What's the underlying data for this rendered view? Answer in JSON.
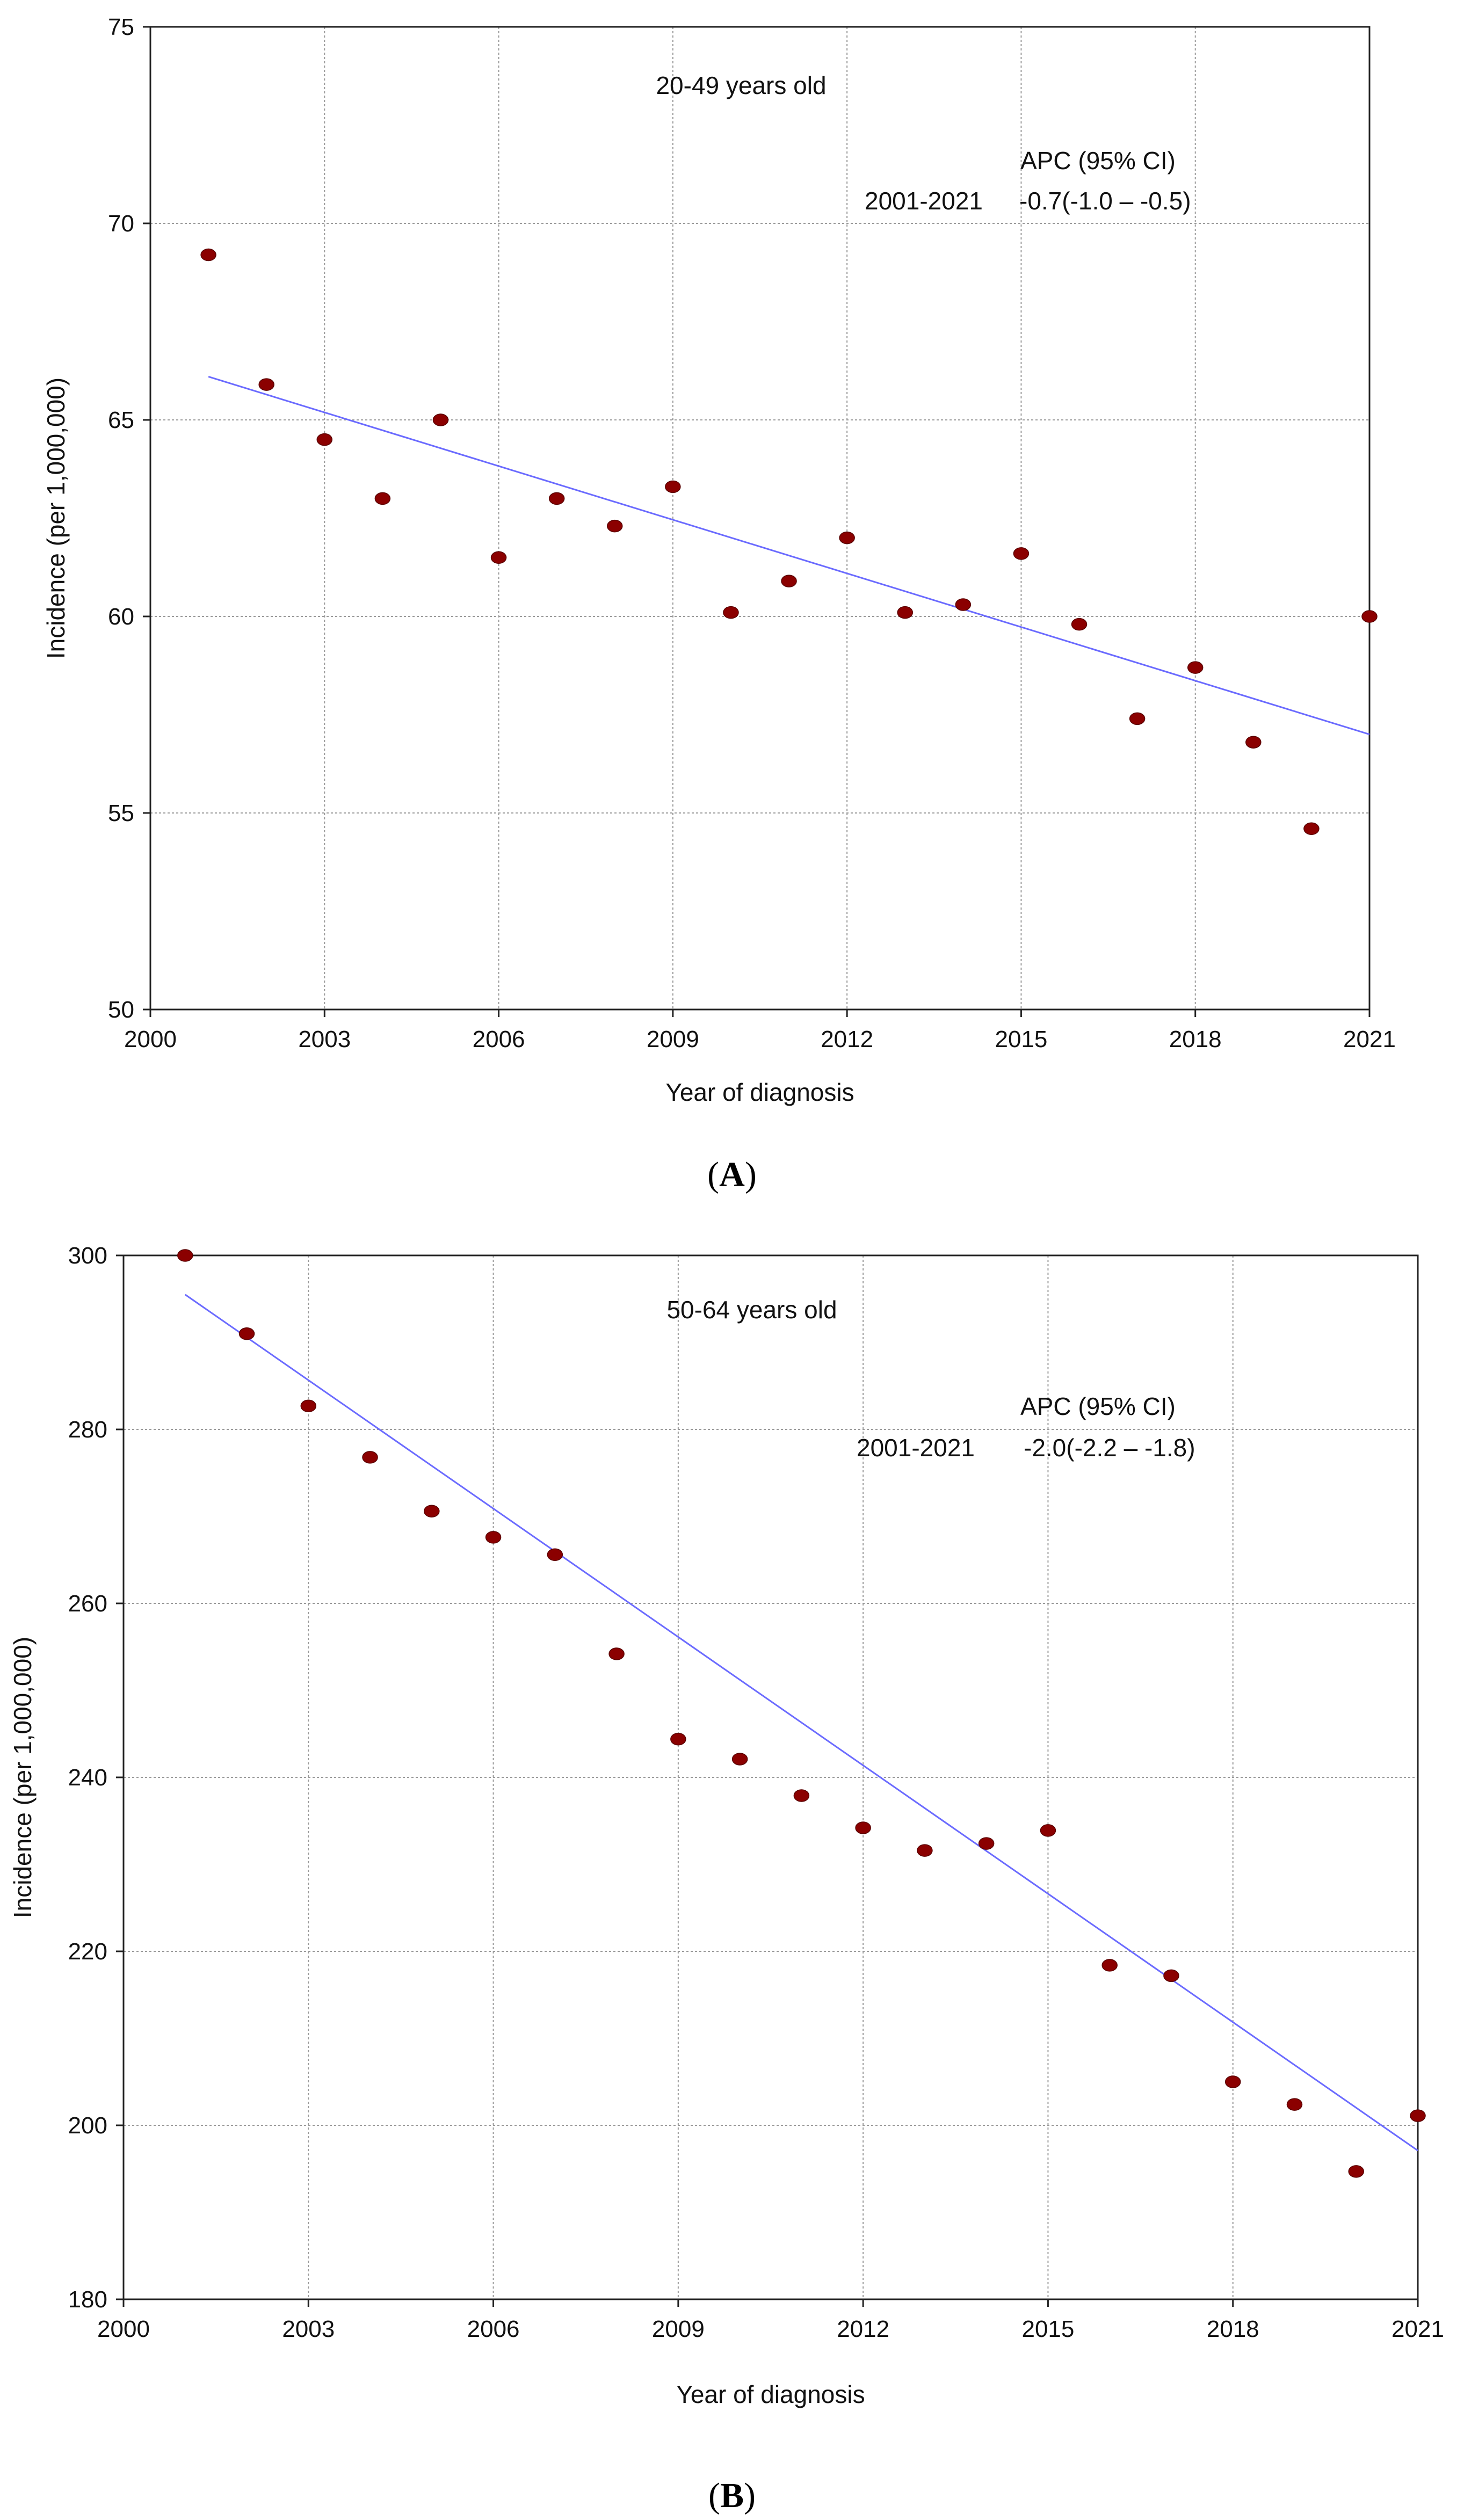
{
  "chart_data": [
    {
      "type": "scatter",
      "panel": "A",
      "title": "20-49 years old",
      "xlabel": "Year of diagnosis",
      "ylabel": "Incidence (per 1,000,000)",
      "xlim": [
        2000,
        2021
      ],
      "ylim": [
        50,
        75
      ],
      "xticks": [
        2000,
        2003,
        2006,
        2009,
        2012,
        2015,
        2018,
        2021
      ],
      "yticks": [
        50,
        55,
        60,
        65,
        70,
        75
      ],
      "grid": true,
      "x": [
        2001,
        2002,
        2003,
        2004,
        2005,
        2006,
        2007,
        2008,
        2009,
        2010,
        2011,
        2012,
        2013,
        2014,
        2015,
        2016,
        2017,
        2018,
        2019,
        2020,
        2021
      ],
      "values": [
        69.2,
        65.9,
        64.5,
        63.0,
        65.0,
        61.5,
        63.0,
        62.3,
        63.3,
        60.1,
        60.9,
        62.0,
        60.1,
        60.3,
        61.6,
        59.8,
        57.4,
        58.7,
        56.8,
        54.6,
        60.0
      ],
      "trend": {
        "x": [
          2001,
          2021
        ],
        "y": [
          66.1,
          57.0
        ]
      },
      "apc_header": "APC (95% CI)",
      "apc_period": "2001-2021",
      "apc_value": "-0.7(-1.0 – -0.5)",
      "marker_color": "#8b0000",
      "trend_color": "#6b6bff"
    },
    {
      "type": "scatter",
      "panel": "B",
      "title": "50-64 years old",
      "xlabel": "Year of diagnosis",
      "ylabel": "Incidence (per 1,000,000)",
      "xlim": [
        2000,
        2021
      ],
      "ylim": [
        180,
        300
      ],
      "xticks": [
        2000,
        2003,
        2006,
        2009,
        2012,
        2015,
        2018,
        2021
      ],
      "yticks": [
        180,
        200,
        220,
        240,
        260,
        280,
        300
      ],
      "grid": true,
      "x": [
        2001,
        2002,
        2003,
        2004,
        2005,
        2006,
        2007,
        2008,
        2009,
        2010,
        2011,
        2012,
        2013,
        2014,
        2015,
        2016,
        2017,
        2018,
        2019,
        2020,
        2021
      ],
      "values": [
        300.0,
        291.0,
        282.7,
        276.8,
        270.6,
        267.6,
        265.6,
        254.2,
        244.4,
        242.1,
        237.9,
        234.2,
        231.6,
        232.4,
        233.9,
        218.4,
        217.2,
        205.0,
        202.4,
        194.7,
        201.1
      ],
      "trend": {
        "x": [
          2001,
          2021
        ],
        "y": [
          295.5,
          197.1
        ]
      },
      "apc_header": "APC (95% CI)",
      "apc_period": "2001-2021",
      "apc_value": "-2.0(-2.2 – -1.8)",
      "marker_color": "#8b0000",
      "trend_color": "#6b6bff"
    }
  ],
  "panel_labels": [
    "A",
    "B"
  ]
}
